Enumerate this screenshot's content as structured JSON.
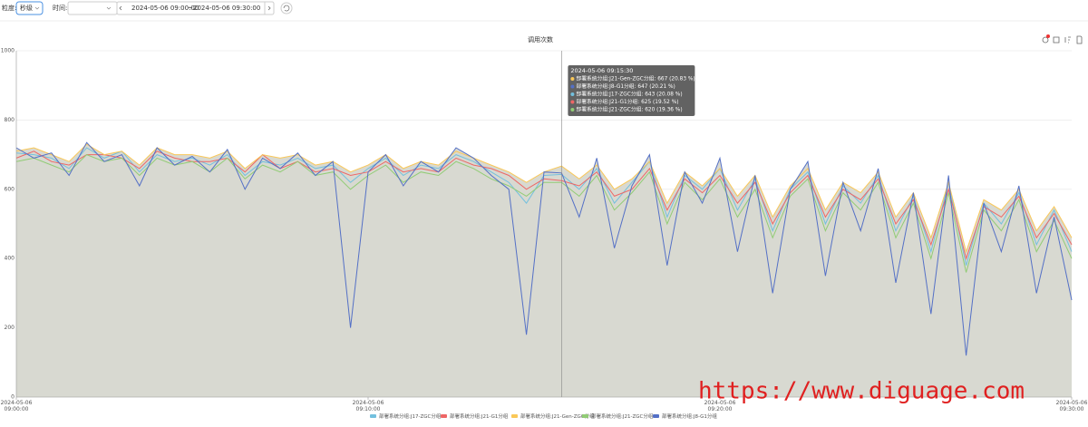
{
  "toolbar": {
    "granularity_label": "粒度:",
    "granularity": "秒级",
    "time_label": "时间:",
    "range_start": "2024-05-06 09:00:00",
    "range_sep": "~",
    "range_end": "2024-05-06 09:30:00"
  },
  "chart_data": {
    "type": "line",
    "title": "调用次数",
    "area_color": "#d8d9d1",
    "grid": true,
    "x": [
      "2024-05-06 09:00:00",
      "2024-05-06 09:00:30",
      "2024-05-06 09:01:00",
      "2024-05-06 09:01:30",
      "2024-05-06 09:02:00",
      "2024-05-06 09:02:30",
      "2024-05-06 09:03:00",
      "2024-05-06 09:03:30",
      "2024-05-06 09:04:00",
      "2024-05-06 09:04:30",
      "2024-05-06 09:05:00",
      "2024-05-06 09:05:30",
      "2024-05-06 09:06:00",
      "2024-05-06 09:06:30",
      "2024-05-06 09:07:00",
      "2024-05-06 09:07:30",
      "2024-05-06 09:08:00",
      "2024-05-06 09:08:30",
      "2024-05-06 09:09:00",
      "2024-05-06 09:09:30",
      "2024-05-06 09:10:00",
      "2024-05-06 09:10:30",
      "2024-05-06 09:11:00",
      "2024-05-06 09:11:30",
      "2024-05-06 09:12:00",
      "2024-05-06 09:12:30",
      "2024-05-06 09:13:00",
      "2024-05-06 09:13:30",
      "2024-05-06 09:14:00",
      "2024-05-06 09:14:30",
      "2024-05-06 09:15:00",
      "2024-05-06 09:15:30",
      "2024-05-06 09:16:00",
      "2024-05-06 09:16:30",
      "2024-05-06 09:17:00",
      "2024-05-06 09:17:30",
      "2024-05-06 09:18:00",
      "2024-05-06 09:18:30",
      "2024-05-06 09:19:00",
      "2024-05-06 09:19:30",
      "2024-05-06 09:20:00",
      "2024-05-06 09:20:30",
      "2024-05-06 09:21:00",
      "2024-05-06 09:21:30",
      "2024-05-06 09:22:00",
      "2024-05-06 09:22:30",
      "2024-05-06 09:23:00",
      "2024-05-06 09:23:30",
      "2024-05-06 09:24:00",
      "2024-05-06 09:24:30",
      "2024-05-06 09:25:00",
      "2024-05-06 09:25:30",
      "2024-05-06 09:26:00",
      "2024-05-06 09:26:30",
      "2024-05-06 09:27:00",
      "2024-05-06 09:27:30",
      "2024-05-06 09:28:00",
      "2024-05-06 09:28:30",
      "2024-05-06 09:29:00",
      "2024-05-06 09:29:30",
      "2024-05-06 09:30:00"
    ],
    "xlim": [
      "2024-05-06 09:00:00",
      "2024-05-06 09:30:00"
    ],
    "xticks": [
      "2024-05-06 09:00:00",
      "2024-05-06 09:10:00",
      "2024-05-06 09:20:00",
      "2024-05-06 09:30:00"
    ],
    "ylim": [
      0,
      1000
    ],
    "yticks": [
      0,
      200,
      400,
      600,
      800,
      1000
    ],
    "series": [
      {
        "name": "部署系统分组:J17-ZGC分组",
        "color": "#73c0de",
        "values": [
          705,
          700,
          690,
          660,
          720,
          690,
          710,
          650,
          700,
          680,
          690,
          670,
          700,
          640,
          680,
          670,
          690,
          660,
          670,
          620,
          660,
          690,
          640,
          670,
          660,
          700,
          680,
          650,
          620,
          560,
          640,
          643,
          600,
          660,
          560,
          620,
          680,
          520,
          640,
          600,
          660,
          540,
          630,
          480,
          600,
          650,
          500,
          610,
          560,
          640,
          480,
          580,
          420,
          620,
          380,
          560,
          500,
          590,
          440,
          540,
          420
        ]
      },
      {
        "name": "部署系统分组:J21-G1分组",
        "color": "#ee6666",
        "values": [
          690,
          710,
          680,
          670,
          700,
          700,
          690,
          660,
          710,
          690,
          680,
          680,
          690,
          650,
          700,
          660,
          680,
          650,
          660,
          640,
          650,
          680,
          650,
          660,
          650,
          690,
          670,
          660,
          640,
          600,
          630,
          625,
          610,
          650,
          580,
          600,
          660,
          540,
          630,
          590,
          640,
          560,
          620,
          500,
          590,
          640,
          520,
          600,
          570,
          630,
          500,
          570,
          440,
          600,
          400,
          550,
          520,
          580,
          460,
          530,
          440
        ]
      },
      {
        "name": "部署系统分组:J21-Gen-ZGC分组",
        "color": "#fac858",
        "values": [
          710,
          720,
          700,
          680,
          730,
          700,
          710,
          670,
          720,
          700,
          700,
          690,
          710,
          660,
          700,
          690,
          700,
          670,
          680,
          650,
          670,
          700,
          660,
          680,
          670,
          710,
          690,
          670,
          650,
          620,
          650,
          667,
          630,
          670,
          600,
          630,
          680,
          560,
          650,
          610,
          660,
          580,
          640,
          520,
          610,
          660,
          540,
          620,
          590,
          650,
          520,
          590,
          460,
          620,
          420,
          570,
          540,
          600,
          480,
          550,
          460
        ]
      },
      {
        "name": "部署系统分组:J21-ZGC分组",
        "color": "#91cc75",
        "values": [
          680,
          690,
          670,
          650,
          700,
          680,
          690,
          640,
          690,
          670,
          680,
          650,
          690,
          630,
          670,
          650,
          680,
          640,
          650,
          600,
          640,
          670,
          620,
          650,
          640,
          680,
          660,
          630,
          610,
          580,
          620,
          620,
          580,
          640,
          540,
          590,
          650,
          500,
          620,
          570,
          630,
          520,
          600,
          460,
          580,
          630,
          480,
          590,
          540,
          620,
          460,
          560,
          400,
          590,
          360,
          540,
          480,
          570,
          420,
          510,
          400
        ]
      },
      {
        "name": "部署系统分组:J8-G1分组",
        "color": "#5470c6",
        "values": [
          720,
          690,
          705,
          640,
          735,
          680,
          700,
          610,
          720,
          670,
          695,
          650,
          715,
          600,
          690,
          660,
          705,
          640,
          680,
          200,
          650,
          700,
          610,
          680,
          650,
          720,
          690,
          640,
          600,
          180,
          650,
          647,
          520,
          690,
          430,
          610,
          700,
          380,
          650,
          560,
          690,
          420,
          640,
          300,
          600,
          680,
          350,
          620,
          480,
          660,
          330,
          590,
          240,
          640,
          120,
          560,
          420,
          610,
          300,
          520,
          280
        ]
      }
    ],
    "tooltip": {
      "title": "2024-05-06 09:15:30",
      "rows": [
        {
          "text": "部署系统分组:J21-Gen-ZGC分组: 667 (20.83 %)",
          "color": "#fac858"
        },
        {
          "text": "部署系统分组:J8-G1分组: 647 (20.21 %)",
          "color": "#5470c6"
        },
        {
          "text": "部署系统分组:J17-ZGC分组: 643 (20.08 %)",
          "color": "#73c0de"
        },
        {
          "text": "部署系统分组:J21-G1分组: 625 (19.52 %)",
          "color": "#ee6666"
        },
        {
          "text": "部署系统分组:J21-ZGC分组: 620 (19.36 %)",
          "color": "#91cc75"
        }
      ]
    }
  },
  "watermark": "https://www.diguage.com"
}
